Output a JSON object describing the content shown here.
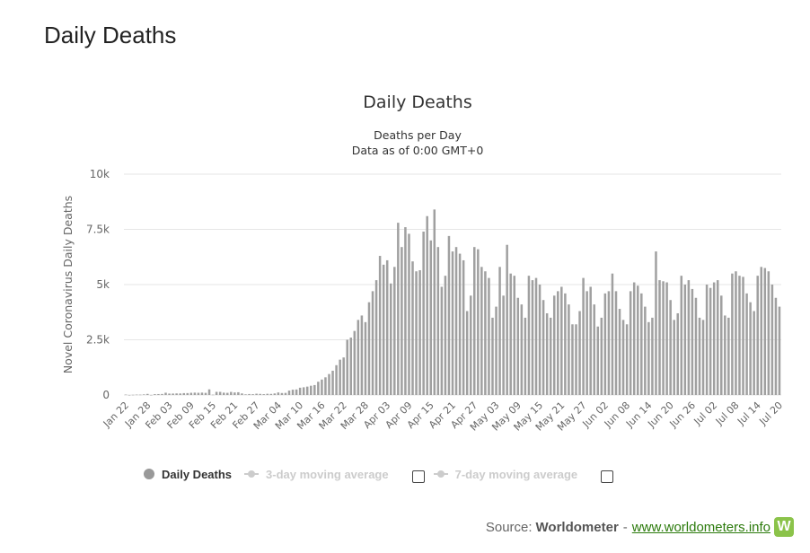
{
  "page": {
    "heading": "Daily Deaths"
  },
  "legend": {
    "items": [
      {
        "label": "Daily Deaths",
        "active": true
      },
      {
        "label": "3-day moving average",
        "active": false
      },
      {
        "label": "7-day moving average",
        "active": false
      }
    ]
  },
  "source": {
    "prefix": "Source:",
    "brand": "Worldometer",
    "separator": "-",
    "link": "www.worldometers.info",
    "logo_letter": "W"
  },
  "colors": {
    "bar": "#a0a0a0",
    "grid": "#e6e6e6",
    "title": "#333333",
    "axis_text": "#666666"
  },
  "chart_data": {
    "type": "bar",
    "title": "Daily Deaths",
    "subtitle_lines": [
      "Deaths per Day",
      "Data as of 0:00 GMT+0"
    ],
    "xlabel": "",
    "ylabel": "Novel Coronavirus Daily Deaths",
    "ylim": [
      0,
      10000
    ],
    "y_ticks": [
      0,
      2500,
      5000,
      7500,
      10000
    ],
    "y_tick_labels": [
      "0",
      "2.5k",
      "5k",
      "7.5k",
      "10k"
    ],
    "grid": true,
    "legend_placement": "bottom",
    "x_tick_labels": [
      "Jan 22",
      "Jan 28",
      "Feb 03",
      "Feb 09",
      "Feb 15",
      "Feb 21",
      "Feb 27",
      "Mar 04",
      "Mar 10",
      "Mar 16",
      "Mar 22",
      "Mar 28",
      "Apr 03",
      "Apr 09",
      "Apr 15",
      "Apr 21",
      "Apr 27",
      "May 03",
      "May 09",
      "May 15",
      "May 21",
      "May 27",
      "Jun 02",
      "Jun 08",
      "Jun 14",
      "Jun 20",
      "Jun 26",
      "Jul 02",
      "Jul 08",
      "Jul 14",
      "Jul 20"
    ],
    "x_start": "Jan 22",
    "x_end": "Jul 20",
    "series": [
      {
        "name": "Daily Deaths",
        "values": [
          17,
          1,
          8,
          16,
          14,
          26,
          49,
          2,
          38,
          42,
          46,
          103,
          64,
          66,
          72,
          70,
          85,
          87,
          100,
          107,
          100,
          108,
          97,
          255,
          13,
          143,
          142,
          106,
          98,
          139,
          115,
          125,
          71,
          30,
          44,
          37,
          58,
          50,
          38,
          55,
          50,
          70,
          115,
          90,
          95,
          200,
          240,
          250,
          330,
          350,
          380,
          420,
          450,
          600,
          700,
          800,
          950,
          1100,
          1350,
          1600,
          1700,
          2500,
          2600,
          2900,
          3400,
          3600,
          3300,
          4200,
          4700,
          5200,
          6300,
          5900,
          6100,
          5050,
          5800,
          7800,
          6700,
          7600,
          7300,
          6050,
          5600,
          5650,
          7400,
          8100,
          7000,
          8400,
          6700,
          4900,
          5400,
          7200,
          6500,
          6700,
          6400,
          6100,
          3800,
          4500,
          6700,
          6600,
          5800,
          5600,
          5300,
          3500,
          4000,
          5800,
          4500,
          6800,
          5500,
          5400,
          4400,
          4100,
          3500,
          5400,
          5200,
          5300,
          5000,
          4300,
          3700,
          3500,
          4500,
          4700,
          4900,
          4600,
          4100,
          3200,
          3200,
          3800,
          5300,
          4700,
          4900,
          4100,
          3100,
          3500,
          4600,
          4700,
          5500,
          4700,
          3900,
          3400,
          3200,
          4700,
          5100,
          4950,
          4600,
          4000,
          3300,
          3500,
          6500,
          5200,
          5150,
          5100,
          4300,
          3400,
          3700,
          5400,
          5000,
          5200,
          4800,
          4400,
          3500,
          3400,
          5000,
          4850,
          5100,
          5200,
          4500,
          3600,
          3500,
          5500,
          5600,
          5400,
          5350,
          4600,
          4200,
          3800,
          5400,
          5800,
          5750,
          5600,
          5000,
          4400,
          4000
        ]
      }
    ]
  }
}
